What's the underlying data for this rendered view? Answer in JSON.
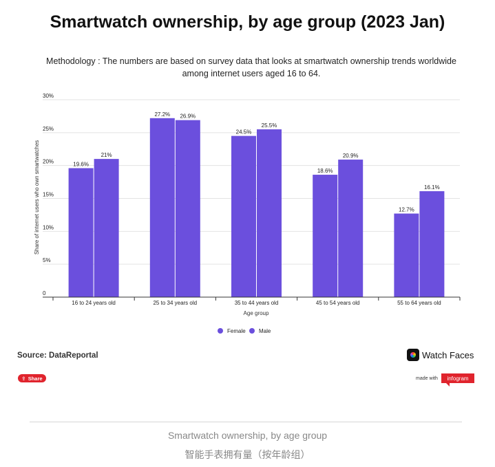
{
  "header": {
    "title": "Smartwatch ownership, by age group (2023 Jan)",
    "subtitle": "Methodology : The numbers are based on survey data that looks at smartwatch ownership trends worldwide among internet users aged 16 to 64."
  },
  "chart_data": {
    "type": "bar",
    "categories": [
      "16 to 24 years old",
      "25 to 34 years old",
      "35 to 44 years old",
      "45 to 54 years old",
      "55 to 64 years old"
    ],
    "series": [
      {
        "name": "Female",
        "values": [
          19.6,
          27.2,
          24.5,
          18.6,
          12.7
        ],
        "labels": [
          "19.6%",
          "27.2%",
          "24.5%",
          "18.6%",
          "12.7%"
        ]
      },
      {
        "name": "Male",
        "values": [
          21,
          26.9,
          25.5,
          20.9,
          16.1
        ],
        "labels": [
          "21%",
          "26.9%",
          "25.5%",
          "20.9%",
          "16.1%"
        ]
      }
    ],
    "xlabel": "Age group",
    "ylabel": "Share of internet users who own smartwatches",
    "ylim": [
      0,
      30
    ],
    "yticks": [
      0,
      5,
      10,
      15,
      20,
      25,
      30
    ],
    "ytick_labels": [
      "0",
      "5%",
      "10%",
      "15%",
      "20%",
      "25%",
      "30%"
    ],
    "grid": true,
    "legend_position": "bottom-center",
    "colors": {
      "bar": "#6b4fdd",
      "grid": "#e3e3e3",
      "axis": "#333333"
    }
  },
  "footer": {
    "source": "Source: DataReportal",
    "brand": "Watch Faces",
    "share_label": "Share",
    "made_with": "made with",
    "infogram_label": "infogram"
  },
  "caption": {
    "line1": "Smartwatch ownership, by age group",
    "line2": "智能手表拥有量（按年龄组）"
  }
}
